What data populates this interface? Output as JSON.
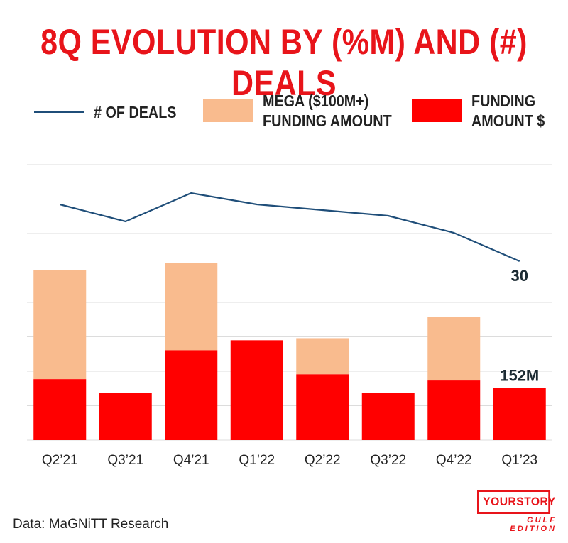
{
  "title": "8Q EVOLUTION BY (%M) AND (#) DEALS",
  "legend": [
    {
      "label": "# OF DEALS",
      "kind": "line",
      "color": "#1f4e79"
    },
    {
      "label": "MEGA ($100M+)\nFUNDING AMOUNT",
      "kind": "box",
      "color": "#f9bb8e"
    },
    {
      "label": "FUNDING\nAMOUNT $",
      "kind": "box",
      "color": "#ff0000"
    }
  ],
  "source": "Data: MaGNiTT Research",
  "logo": {
    "main": "YOURSTORY",
    "sub": "GULF EDITION"
  },
  "chart_data": {
    "type": "bar",
    "categories": [
      "Q2’21",
      "Q3’21",
      "Q4’21",
      "Q1’22",
      "Q2’22",
      "Q3’22",
      "Q4’22",
      "Q1’23"
    ],
    "series": [
      {
        "name": "FUNDING AMOUNT $",
        "color": "#ff0000",
        "values": [
          177,
          137,
          261,
          290,
          191,
          138,
          173,
          152
        ]
      },
      {
        "name": "MEGA ($100M+) FUNDING AMOUNT",
        "color": "#f9bb8e",
        "values": [
          317,
          0,
          254,
          0,
          105,
          0,
          185,
          0
        ]
      },
      {
        "name": "# OF DEALS",
        "type": "line",
        "color": "#1f4e79",
        "values": [
          40,
          37,
          42,
          40,
          39,
          38,
          35,
          30
        ]
      }
    ],
    "annotations": [
      {
        "series": "# OF DEALS",
        "category": "Q1’23",
        "text": "30"
      },
      {
        "series": "FUNDING AMOUNT $",
        "category": "Q1’23",
        "text": "152M"
      }
    ],
    "grid": true
  }
}
